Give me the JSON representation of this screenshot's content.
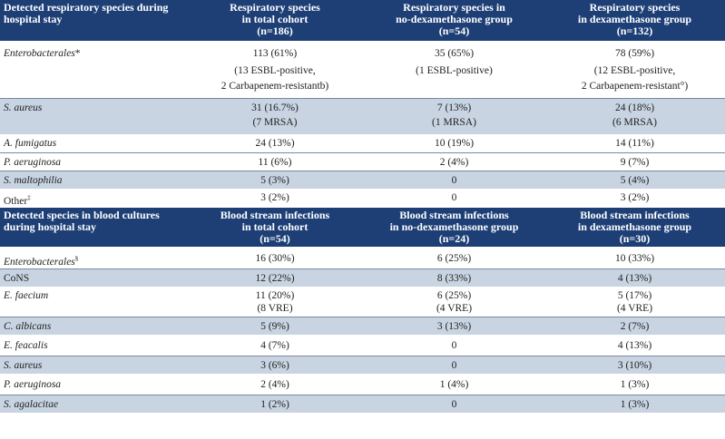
{
  "respiratory": {
    "headers": [
      "Detected respiratory species during hospital stay",
      "Respiratory species\nin total cohort\n(n=186)",
      "Respiratory species in\nno-dexamethasone group\n(n=54)",
      "Respiratory species\nin dexamethasone group\n(n=132)"
    ],
    "rows": [
      {
        "species": "Enterobacterales",
        "sup": "*",
        "total": "113 (61%)",
        "nodex": "35 (65%)",
        "dex": "78 (59%)"
      },
      {
        "species": "",
        "sup": "",
        "total": "(13 ESBL-positive,",
        "nodex": "(1 ESBL-positive)",
        "dex": "(12 ESBL-positive,"
      },
      {
        "species": "",
        "sup": "",
        "total": "2 Carbapenem-resistantb)",
        "nodex": "",
        "dex": "2 Carbapenem-resistant°)"
      },
      {
        "species": "S. aureus",
        "sup": "",
        "total": "31 (16.7%)",
        "nodex": "7 (13%)",
        "dex": "24 (18%)"
      },
      {
        "species": "",
        "sup": "",
        "total": "(7 MRSA)",
        "nodex": "(1 MRSA)",
        "dex": "(6 MRSA)"
      },
      {
        "species": "A. fumigatus",
        "sup": "",
        "total": "24 (13%)",
        "nodex": "10 (19%)",
        "dex": "14 (11%)"
      },
      {
        "species": "P. aeruginosa",
        "sup": "",
        "total": "11 (6%)",
        "nodex": "2 (4%)",
        "dex": "9 (7%)"
      },
      {
        "species": "S. maltophilia",
        "sup": "",
        "total": "5 (3%)",
        "nodex": "0",
        "dex": "5 (4%)"
      },
      {
        "species": "Other",
        "sup": "‡",
        "total": "3 (2%)",
        "nodex": "0",
        "dex": "3 (2%)"
      }
    ]
  },
  "blood": {
    "headers": [
      "Detected species in blood cultures during hospital stay",
      "Blood stream infections\nin total cohort\n(n=54)",
      "Blood stream infections\nin no-dexamethasone group\n(n=24)",
      "Blood stream infections\nin dexamethasone group\n(n=30)"
    ],
    "rows": [
      {
        "species": "Enterobacterales",
        "sup": "§",
        "total": "16 (30%)",
        "nodex": "6 (25%)",
        "dex": "10 (33%)"
      },
      {
        "species": "CoNS",
        "sup": "",
        "total": "12 (22%)",
        "nodex": "8 (33%)",
        "dex": "4 (13%)"
      },
      {
        "species": "E. faecium",
        "sup": "",
        "total": "11 (20%)",
        "nodex": "6 (25%)",
        "dex": "5 (17%)"
      },
      {
        "species": "",
        "sup": "",
        "total": "(8 VRE)",
        "nodex": "(4 VRE)",
        "dex": "(4 VRE)"
      },
      {
        "species": "C. albicans",
        "sup": "",
        "total": "5 (9%)",
        "nodex": "3 (13%)",
        "dex": "2 (7%)"
      },
      {
        "species": "E. feacalis",
        "sup": "",
        "total": "4 (7%)",
        "nodex": "0",
        "dex": "4 (13%)"
      },
      {
        "species": "S. aureus",
        "sup": "",
        "total": "3 (6%)",
        "nodex": "0",
        "dex": "3 (10%)"
      },
      {
        "species": "P. aeruginosa",
        "sup": "",
        "total": "2 (4%)",
        "nodex": "1 (4%)",
        "dex": "1 (3%)"
      },
      {
        "species": "S. agalacitae",
        "sup": "",
        "total": "1 (2%)",
        "nodex": "0",
        "dex": "1 (3%)"
      }
    ]
  }
}
